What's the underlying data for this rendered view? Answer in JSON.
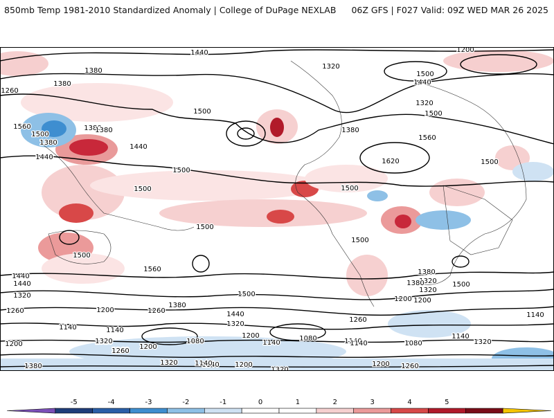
{
  "header": {
    "title_left": "850mb Temp 1981-2010 Standardized Anomaly | College of DuPage NEXLAB",
    "title_right": "06Z GFS | F027 Valid: 09Z WED MAR 26 2025"
  },
  "contour_labels": [
    {
      "text": "1440"
    },
    {
      "text": "1380"
    },
    {
      "text": "1260"
    },
    {
      "text": "1200"
    },
    {
      "text": "1320"
    },
    {
      "text": "1380"
    },
    {
      "text": "1440"
    },
    {
      "text": "1500"
    },
    {
      "text": "1500"
    },
    {
      "text": "1380"
    },
    {
      "text": "1560"
    },
    {
      "text": "1500"
    },
    {
      "text": "1380"
    },
    {
      "text": "1440"
    },
    {
      "text": "1440"
    },
    {
      "text": "1380"
    },
    {
      "text": "1320"
    },
    {
      "text": "1500"
    },
    {
      "text": "1380"
    },
    {
      "text": "1560"
    },
    {
      "text": "1620"
    },
    {
      "text": "1500"
    },
    {
      "text": "1500"
    },
    {
      "text": "1500"
    },
    {
      "text": "1500"
    },
    {
      "text": "1500"
    },
    {
      "text": "1500"
    },
    {
      "text": "1500"
    },
    {
      "text": "1560"
    },
    {
      "text": "1500"
    },
    {
      "text": "1500"
    },
    {
      "text": "1440"
    },
    {
      "text": "1380"
    },
    {
      "text": "1320"
    },
    {
      "text": "1200"
    },
    {
      "text": "1500"
    },
    {
      "text": "1440"
    },
    {
      "text": "1320"
    },
    {
      "text": "1260"
    },
    {
      "text": "1380"
    },
    {
      "text": "1200"
    },
    {
      "text": "1260"
    },
    {
      "text": "1440"
    },
    {
      "text": "1320"
    },
    {
      "text": "1140"
    },
    {
      "text": "1140"
    },
    {
      "text": "1320"
    },
    {
      "text": "1080"
    },
    {
      "text": "1200"
    },
    {
      "text": "1260"
    },
    {
      "text": "1140"
    },
    {
      "text": "1080"
    },
    {
      "text": "1140"
    },
    {
      "text": "1260"
    },
    {
      "text": "1140"
    },
    {
      "text": "1080"
    },
    {
      "text": "1140"
    },
    {
      "text": "1320"
    },
    {
      "text": "1200"
    },
    {
      "text": "1380"
    },
    {
      "text": "1320"
    },
    {
      "text": "1140"
    },
    {
      "text": "1200"
    },
    {
      "text": "1320"
    },
    {
      "text": "1200"
    },
    {
      "text": "1260"
    },
    {
      "text": "1320"
    },
    {
      "text": "1140"
    },
    {
      "text": "1320"
    },
    {
      "text": "1200"
    },
    {
      "text": "1260"
    },
    {
      "text": "1380"
    },
    {
      "text": "1140"
    },
    {
      "text": "1200"
    }
  ],
  "colorbar": {
    "ticks": [
      "-5",
      "-4",
      "-3",
      "-2",
      "-1",
      "0",
      "1",
      "2",
      "3",
      "4",
      "5"
    ],
    "colors": [
      "#7b4fb8",
      "#1f3d7a",
      "#2a5fa8",
      "#3e8ed0",
      "#8ec0e6",
      "#cfe2f3",
      "#ffffff",
      "#ffffff",
      "#f6d0d0",
      "#eb9a9a",
      "#d84848",
      "#b11a2a",
      "#7a0c18",
      "#f5c400"
    ]
  }
}
